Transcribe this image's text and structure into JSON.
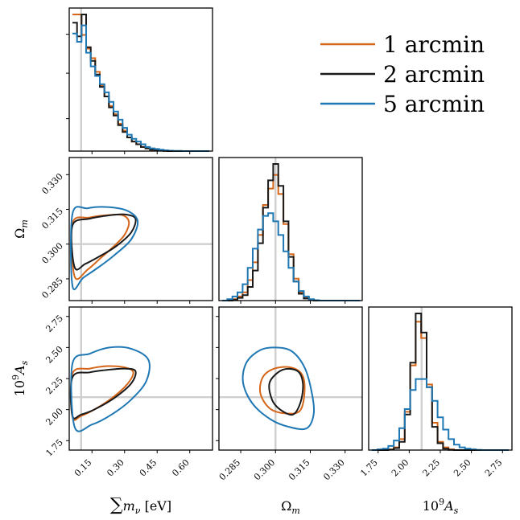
{
  "chart_data": {
    "type": "corner",
    "parameters": [
      {
        "key": "mnu",
        "label_main": "∑",
        "label_tail": "m",
        "label_sub": "ν",
        "label_unit": " [eV]",
        "xlim": [
          0.06,
          0.69
        ],
        "ticks": [
          "0.15",
          "0.30",
          "0.45",
          "0.60"
        ],
        "tick_values": [
          0.15,
          0.3,
          0.45,
          0.6
        ],
        "truth": 0.1
      },
      {
        "key": "om",
        "label_main": "Ω",
        "label_sub": "m",
        "xlim": [
          0.277,
          0.336
        ],
        "ticks": [
          "0.285",
          "0.300",
          "0.315",
          "0.330"
        ],
        "tick_values": [
          0.285,
          0.3,
          0.315,
          0.33
        ],
        "truth": 0.3
      },
      {
        "key": "as",
        "label_main": "10",
        "label_sup": "9",
        "label_tail": "A",
        "label_sub": "s",
        "xlim": [
          1.7,
          2.8
        ],
        "ticks": [
          "1.75",
          "2.00",
          "2.25",
          "2.50",
          "2.75"
        ],
        "tick_values": [
          1.75,
          2.0,
          2.25,
          2.5,
          2.75
        ],
        "truth": 2.1
      }
    ],
    "series": [
      {
        "name": "1 arcmin",
        "color": "#d5661a"
      },
      {
        "name": "2 arcmin",
        "color": "#1a1a1a"
      },
      {
        "name": "5 arcmin",
        "color": "#1f78b4"
      }
    ],
    "histograms": {
      "mnu": {
        "bin_start": 0.06,
        "bin_width": 0.021,
        "counts": [
          [
            100,
            100,
            85,
            75,
            68,
            58,
            48,
            40,
            33,
            27,
            20,
            15,
            10,
            7,
            5,
            3,
            2,
            1,
            0.5,
            0.3,
            0.1,
            0,
            0,
            0,
            0,
            0,
            0,
            0,
            0,
            0
          ],
          [
            94,
            84,
            100,
            76,
            66,
            56,
            47,
            40,
            32,
            26,
            19,
            14,
            10,
            7,
            5,
            3,
            2,
            1,
            0.5,
            0.3,
            0.1,
            0,
            0,
            0,
            0,
            0,
            0,
            0,
            0,
            0
          ],
          [
            86,
            80,
            92,
            72,
            62,
            55,
            49,
            43,
            36,
            29,
            23,
            17,
            12,
            9,
            7,
            5,
            3,
            2,
            1.5,
            1,
            0.6,
            0.3,
            0.2,
            0.1,
            0,
            0,
            0,
            0,
            0,
            0
          ]
        ]
      },
      "om": {
        "bin_start": 0.277,
        "bin_width": 0.0022,
        "counts": [
          [
            0,
            0,
            1,
            3,
            6,
            15,
            28,
            48,
            70,
            82,
            92,
            78,
            56,
            34,
            16,
            6,
            2,
            0.5,
            0,
            0,
            0,
            0,
            0,
            0,
            0,
            0,
            0
          ],
          [
            0,
            0,
            0.5,
            2,
            4,
            10,
            22,
            42,
            68,
            88,
            100,
            84,
            58,
            32,
            14,
            5,
            1.5,
            0.3,
            0,
            0,
            0,
            0,
            0,
            0,
            0,
            0,
            0
          ],
          [
            0,
            1,
            3,
            6,
            12,
            24,
            38,
            52,
            62,
            64,
            58,
            48,
            36,
            24,
            14,
            7,
            3,
            1,
            0.3,
            0,
            0,
            0,
            0,
            0,
            0,
            0,
            0
          ]
        ]
      },
      "as": {
        "bin_start": 1.7,
        "bin_width": 0.044,
        "counts": [
          [
            0,
            0,
            0,
            0.5,
            2,
            8,
            28,
            62,
            94,
            82,
            48,
            20,
            6,
            2,
            0.5,
            0,
            0,
            0,
            0,
            0,
            0,
            0,
            0,
            0,
            0
          ],
          [
            0,
            0,
            0,
            0.3,
            1.5,
            6,
            26,
            64,
            100,
            86,
            46,
            17,
            5,
            1,
            0.2,
            0,
            0,
            0,
            0,
            0,
            0,
            0,
            0,
            0,
            0
          ],
          [
            0,
            0.5,
            1,
            3,
            7,
            16,
            30,
            44,
            52,
            52,
            46,
            36,
            24,
            15,
            8,
            4,
            2,
            1,
            0.5,
            0.2,
            0,
            0,
            0,
            0,
            0
          ]
        ]
      }
    },
    "contours": {
      "mnu_om": [
        {
          "pts": [
            [
              0.06,
              0.309
            ],
            [
              0.14,
              0.3115
            ],
            [
              0.22,
              0.3125
            ],
            [
              0.29,
              0.3125
            ],
            [
              0.32,
              0.3095
            ],
            [
              0.3,
              0.304
            ],
            [
              0.25,
              0.299
            ],
            [
              0.19,
              0.294
            ],
            [
              0.13,
              0.289
            ],
            [
              0.07,
              0.286
            ]
          ]
        },
        {
          "pts": [
            [
              0.06,
              0.308
            ],
            [
              0.14,
              0.311
            ],
            [
              0.22,
              0.3123
            ],
            [
              0.3,
              0.3128
            ],
            [
              0.35,
              0.311
            ],
            [
              0.33,
              0.305
            ],
            [
              0.26,
              0.299
            ],
            [
              0.19,
              0.295
            ],
            [
              0.12,
              0.2915
            ],
            [
              0.07,
              0.29
            ]
          ]
        },
        {
          "pts": [
            [
              0.06,
              0.313
            ],
            [
              0.13,
              0.3155
            ],
            [
              0.22,
              0.316
            ],
            [
              0.31,
              0.3145
            ],
            [
              0.36,
              0.31
            ],
            [
              0.33,
              0.302
            ],
            [
              0.25,
              0.295
            ],
            [
              0.18,
              0.29
            ],
            [
              0.11,
              0.2855
            ],
            [
              0.06,
              0.282
            ]
          ]
        }
      ],
      "mnu_as": [
        {
          "pts": [
            [
              0.06,
              2.29
            ],
            [
              0.14,
              2.33
            ],
            [
              0.22,
              2.35
            ],
            [
              0.3,
              2.34
            ],
            [
              0.34,
              2.3
            ],
            [
              0.31,
              2.2
            ],
            [
              0.24,
              2.09
            ],
            [
              0.16,
              2.0
            ],
            [
              0.1,
              1.95
            ],
            [
              0.06,
              1.94
            ]
          ]
        },
        {
          "pts": [
            [
              0.06,
              2.26
            ],
            [
              0.14,
              2.3
            ],
            [
              0.22,
              2.32
            ],
            [
              0.3,
              2.33
            ],
            [
              0.35,
              2.31
            ],
            [
              0.33,
              2.21
            ],
            [
              0.25,
              2.09
            ],
            [
              0.16,
              2.0
            ],
            [
              0.1,
              1.96
            ],
            [
              0.06,
              1.95
            ]
          ]
        },
        {
          "pts": [
            [
              0.06,
              2.37
            ],
            [
              0.14,
              2.45
            ],
            [
              0.23,
              2.5
            ],
            [
              0.33,
              2.49
            ],
            [
              0.41,
              2.4
            ],
            [
              0.4,
              2.23
            ],
            [
              0.33,
              2.08
            ],
            [
              0.24,
              1.96
            ],
            [
              0.15,
              1.88
            ],
            [
              0.07,
              1.86
            ]
          ]
        }
      ],
      "om_as": [
        {
          "pts": [
            [
              0.2945,
              2.26
            ],
            [
              0.2995,
              2.33
            ],
            [
              0.3065,
              2.34
            ],
            [
              0.3115,
              2.28
            ],
            [
              0.3125,
              2.14
            ],
            [
              0.3105,
              1.99
            ],
            [
              0.304,
              1.97
            ],
            [
              0.2975,
              2.01
            ],
            [
              0.2935,
              2.13
            ]
          ]
        },
        {
          "pts": [
            [
              0.2975,
              2.22
            ],
            [
              0.303,
              2.32
            ],
            [
              0.3095,
              2.31
            ],
            [
              0.3118,
              2.21
            ],
            [
              0.3108,
              2.06
            ],
            [
              0.3075,
              1.96
            ],
            [
              0.302,
              2.0
            ],
            [
              0.2985,
              2.08
            ]
          ]
        },
        {
          "pts": [
            [
              0.2875,
              2.38
            ],
            [
              0.2935,
              2.48
            ],
            [
              0.3,
              2.5
            ],
            [
              0.307,
              2.47
            ],
            [
              0.3125,
              2.34
            ],
            [
              0.3155,
              2.15
            ],
            [
              0.3165,
              1.97
            ],
            [
              0.3135,
              1.85
            ],
            [
              0.306,
              1.86
            ],
            [
              0.298,
              1.92
            ],
            [
              0.29,
              2.05
            ],
            [
              0.286,
              2.22
            ]
          ]
        }
      ]
    }
  }
}
